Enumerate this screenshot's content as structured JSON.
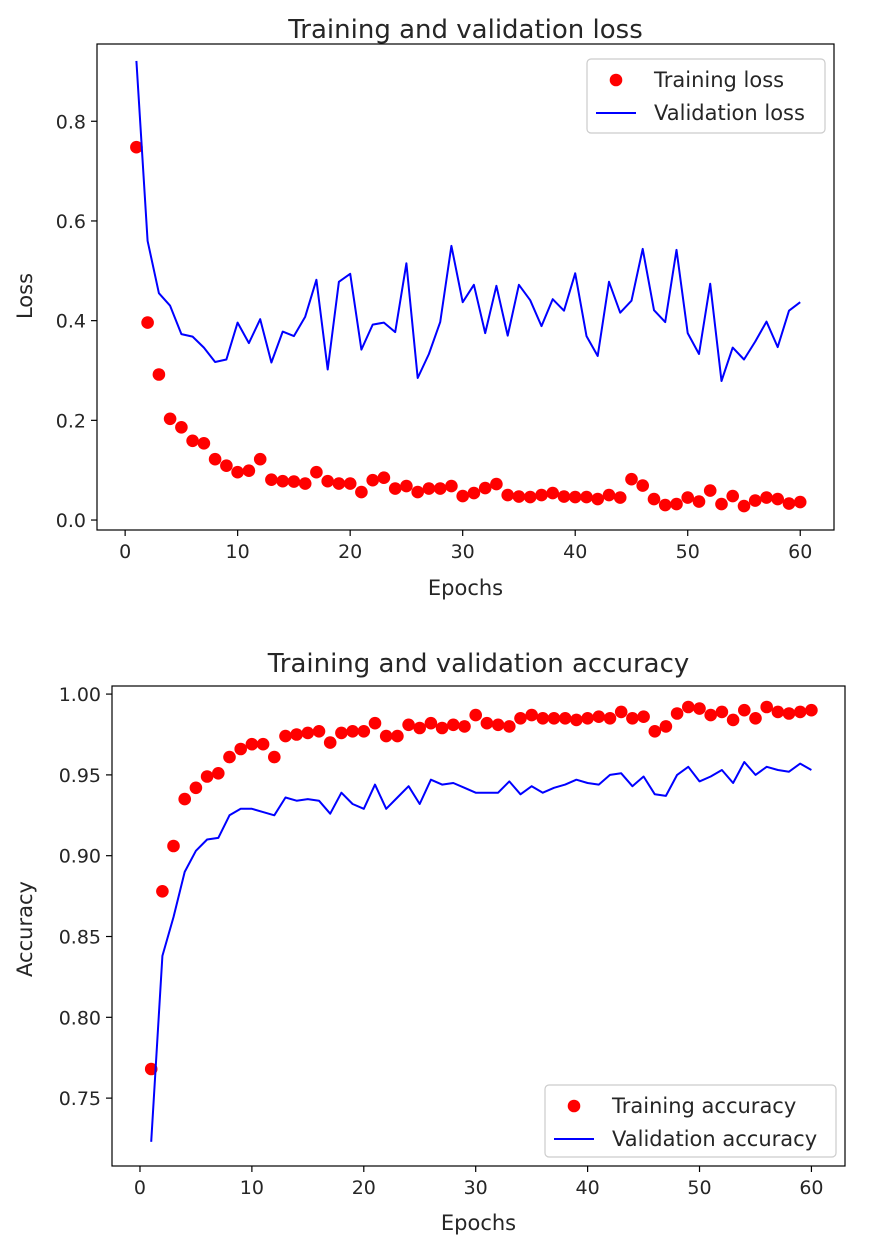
{
  "colors": {
    "training": "#ff0000",
    "validation": "#0000ff",
    "axes": "#000000",
    "text": "#262626"
  },
  "chart_data": [
    {
      "type": "line",
      "title": "Training and validation loss",
      "xlabel": "Epochs",
      "ylabel": "Loss",
      "xlim": [
        -2.5,
        63
      ],
      "ylim": [
        -0.02,
        0.955
      ],
      "xticks": [
        0,
        10,
        20,
        30,
        40,
        50,
        60
      ],
      "xtick_labels": [
        "0",
        "10",
        "20",
        "30",
        "40",
        "50",
        "60"
      ],
      "yticks": [
        0.0,
        0.2,
        0.4,
        0.6,
        0.8
      ],
      "ytick_labels": [
        "0.0",
        "0.2",
        "0.4",
        "0.6",
        "0.8"
      ],
      "grid": false,
      "legend_position": "top-right",
      "x": [
        1,
        2,
        3,
        4,
        5,
        6,
        7,
        8,
        9,
        10,
        11,
        12,
        13,
        14,
        15,
        16,
        17,
        18,
        19,
        20,
        21,
        22,
        23,
        24,
        25,
        26,
        27,
        28,
        29,
        30,
        31,
        32,
        33,
        34,
        35,
        36,
        37,
        38,
        39,
        40,
        41,
        42,
        43,
        44,
        45,
        46,
        47,
        48,
        49,
        50,
        51,
        52,
        53,
        54,
        55,
        56,
        57,
        58,
        59,
        60
      ],
      "series": [
        {
          "name": "Training loss",
          "style": "markers",
          "color": "#ff0000",
          "values": [
            0.748,
            0.396,
            0.292,
            0.203,
            0.186,
            0.159,
            0.154,
            0.122,
            0.109,
            0.096,
            0.099,
            0.122,
            0.081,
            0.078,
            0.077,
            0.073,
            0.096,
            0.078,
            0.073,
            0.073,
            0.056,
            0.08,
            0.085,
            0.063,
            0.068,
            0.056,
            0.063,
            0.063,
            0.068,
            0.048,
            0.054,
            0.064,
            0.072,
            0.05,
            0.047,
            0.046,
            0.05,
            0.054,
            0.047,
            0.046,
            0.046,
            0.042,
            0.05,
            0.045,
            0.082,
            0.069,
            0.042,
            0.03,
            0.032,
            0.045,
            0.037,
            0.059,
            0.032,
            0.048,
            0.028,
            0.039,
            0.045,
            0.042,
            0.033,
            0.036
          ]
        },
        {
          "name": "Validation loss",
          "style": "line",
          "color": "#0000ff",
          "values": [
            0.921,
            0.56,
            0.455,
            0.43,
            0.373,
            0.368,
            0.346,
            0.317,
            0.322,
            0.396,
            0.355,
            0.403,
            0.316,
            0.378,
            0.369,
            0.408,
            0.482,
            0.302,
            0.478,
            0.494,
            0.342,
            0.392,
            0.396,
            0.377,
            0.515,
            0.285,
            0.333,
            0.397,
            0.55,
            0.437,
            0.472,
            0.375,
            0.47,
            0.37,
            0.472,
            0.441,
            0.389,
            0.443,
            0.42,
            0.495,
            0.369,
            0.329,
            0.478,
            0.416,
            0.44,
            0.544,
            0.421,
            0.397,
            0.542,
            0.375,
            0.333,
            0.474,
            0.279,
            0.346,
            0.322,
            0.358,
            0.398,
            0.347,
            0.42,
            0.437
          ]
        }
      ]
    },
    {
      "type": "line",
      "title": "Training and validation accuracy",
      "xlabel": "Epochs",
      "ylabel": "Accuracy",
      "xlim": [
        -2.5,
        63
      ],
      "ylim": [
        0.708,
        1.005
      ],
      "xticks": [
        0,
        10,
        20,
        30,
        40,
        50,
        60
      ],
      "xtick_labels": [
        "0",
        "10",
        "20",
        "30",
        "40",
        "50",
        "60"
      ],
      "yticks": [
        0.75,
        0.8,
        0.85,
        0.9,
        0.95,
        1.0
      ],
      "ytick_labels": [
        "0.75",
        "0.80",
        "0.85",
        "0.90",
        "0.95",
        "1.00"
      ],
      "grid": false,
      "legend_position": "bottom-right",
      "x": [
        1,
        2,
        3,
        4,
        5,
        6,
        7,
        8,
        9,
        10,
        11,
        12,
        13,
        14,
        15,
        16,
        17,
        18,
        19,
        20,
        21,
        22,
        23,
        24,
        25,
        26,
        27,
        28,
        29,
        30,
        31,
        32,
        33,
        34,
        35,
        36,
        37,
        38,
        39,
        40,
        41,
        42,
        43,
        44,
        45,
        46,
        47,
        48,
        49,
        50,
        51,
        52,
        53,
        54,
        55,
        56,
        57,
        58,
        59,
        60
      ],
      "series": [
        {
          "name": "Training accuracy",
          "style": "markers",
          "color": "#ff0000",
          "values": [
            0.768,
            0.878,
            0.906,
            0.935,
            0.942,
            0.949,
            0.951,
            0.961,
            0.966,
            0.969,
            0.969,
            0.961,
            0.974,
            0.975,
            0.976,
            0.977,
            0.97,
            0.976,
            0.977,
            0.977,
            0.982,
            0.974,
            0.974,
            0.981,
            0.979,
            0.982,
            0.979,
            0.981,
            0.98,
            0.987,
            0.982,
            0.981,
            0.98,
            0.985,
            0.987,
            0.985,
            0.985,
            0.985,
            0.984,
            0.985,
            0.986,
            0.985,
            0.989,
            0.985,
            0.986,
            0.977,
            0.98,
            0.988,
            0.992,
            0.991,
            0.987,
            0.989,
            0.984,
            0.99,
            0.985,
            0.992,
            0.989,
            0.988,
            0.989,
            0.99
          ]
        },
        {
          "name": "Validation accuracy",
          "style": "line",
          "color": "#0000ff",
          "values": [
            0.723,
            0.838,
            0.862,
            0.89,
            0.903,
            0.91,
            0.911,
            0.925,
            0.929,
            0.929,
            0.927,
            0.925,
            0.936,
            0.934,
            0.935,
            0.934,
            0.926,
            0.939,
            0.932,
            0.929,
            0.944,
            0.929,
            0.936,
            0.943,
            0.932,
            0.947,
            0.944,
            0.945,
            0.942,
            0.939,
            0.939,
            0.939,
            0.946,
            0.938,
            0.943,
            0.939,
            0.942,
            0.944,
            0.947,
            0.945,
            0.944,
            0.95,
            0.951,
            0.943,
            0.949,
            0.938,
            0.937,
            0.95,
            0.955,
            0.946,
            0.949,
            0.953,
            0.945,
            0.958,
            0.95,
            0.955,
            0.953,
            0.952,
            0.957,
            0.953
          ]
        }
      ]
    }
  ]
}
